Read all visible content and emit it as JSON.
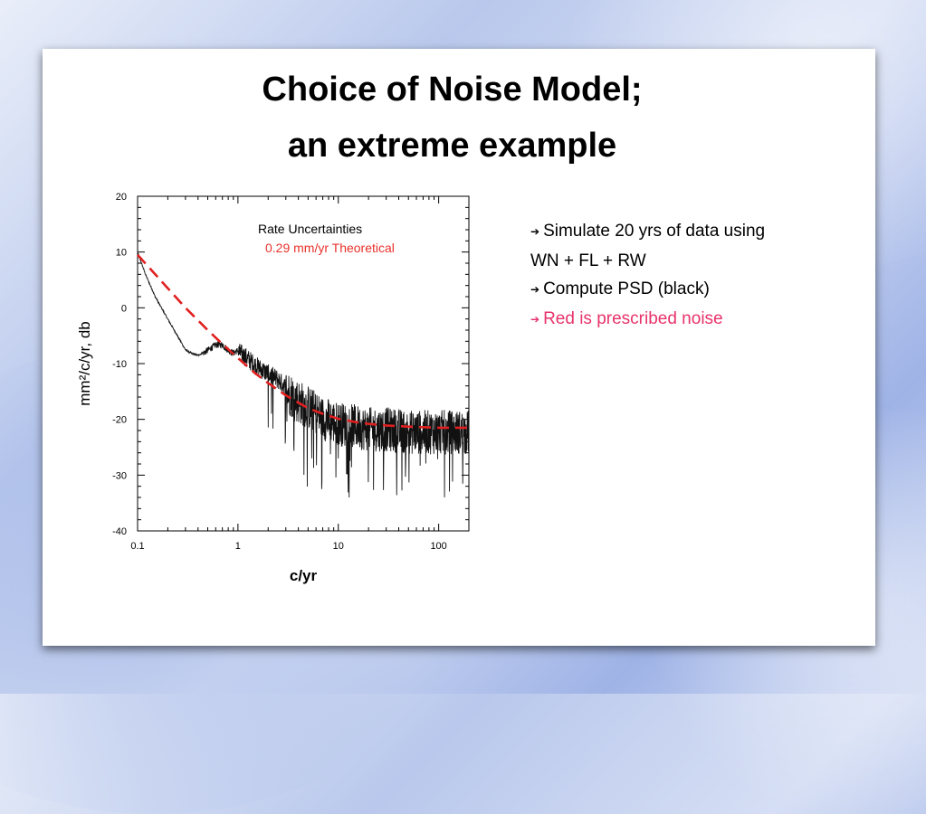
{
  "slide": {
    "title_line1": "Choice of Noise Model;",
    "title_line2": "an extreme example"
  },
  "bullets": [
    {
      "text": "Simulate 20 yrs of data using",
      "color": "#000000",
      "arrow": true
    },
    {
      "text": "WN + FL + RW",
      "color": "#000000",
      "arrow": false
    },
    {
      "text": "Compute PSD (black)",
      "color": "#000000",
      "arrow": true
    },
    {
      "text": "Red is prescribed noise",
      "color": "#e8336b",
      "arrow": true
    }
  ],
  "chart_data": {
    "type": "line",
    "xscale": "log",
    "xlim": [
      0.1,
      200
    ],
    "ylim": [
      -40,
      20
    ],
    "xticks": [
      "0.1",
      "1",
      "10",
      "100"
    ],
    "yticks": [
      "20",
      "10",
      "0",
      "-10",
      "-20",
      "-30",
      "-40"
    ],
    "xlabel": "c/yr",
    "ylabel": "mm²/c/yr, db",
    "annotations": [
      {
        "text": "Rate Uncertainties",
        "color": "#000000"
      },
      {
        "text": "0.29 mm/yr Theoretical",
        "color": "#e8312b"
      }
    ],
    "series": [
      {
        "style": "dashed",
        "color": "#e02020",
        "x": [
          0.1,
          0.15,
          0.2,
          0.3,
          0.5,
          0.7,
          1,
          1.5,
          2,
          3,
          5,
          7,
          10,
          15,
          20,
          30,
          50,
          70,
          100,
          150,
          200
        ],
        "y": [
          9.5,
          6.0,
          3.5,
          0.0,
          -4.0,
          -6.5,
          -9.0,
          -11.8,
          -13.5,
          -15.7,
          -18.0,
          -19.0,
          -19.9,
          -20.5,
          -20.8,
          -21.1,
          -21.3,
          -21.4,
          -21.5,
          -21.5,
          -21.5
        ]
      },
      {
        "style": "noisy",
        "color": "#111111",
        "x": [
          0.1,
          0.12,
          0.15,
          0.2,
          0.25,
          0.3,
          0.35,
          0.4,
          0.45,
          0.5,
          0.55,
          0.6,
          0.7,
          0.8,
          0.9,
          1,
          1.2,
          1.5,
          2,
          2.5,
          3,
          4,
          5,
          7,
          10,
          15,
          20,
          30,
          50,
          70,
          100,
          150,
          200
        ],
        "y": [
          10,
          6,
          2,
          -2,
          -5,
          -7.5,
          -8.2,
          -8.5,
          -8,
          -7.5,
          -7,
          -6.5,
          -6.5,
          -7.5,
          -8,
          -7.5,
          -8.5,
          -10,
          -11.5,
          -12.5,
          -14,
          -16,
          -17,
          -19,
          -20,
          -20.5,
          -21,
          -21,
          -21.5,
          -21.5,
          -21.5,
          -21.5,
          -21.5
        ]
      }
    ]
  }
}
